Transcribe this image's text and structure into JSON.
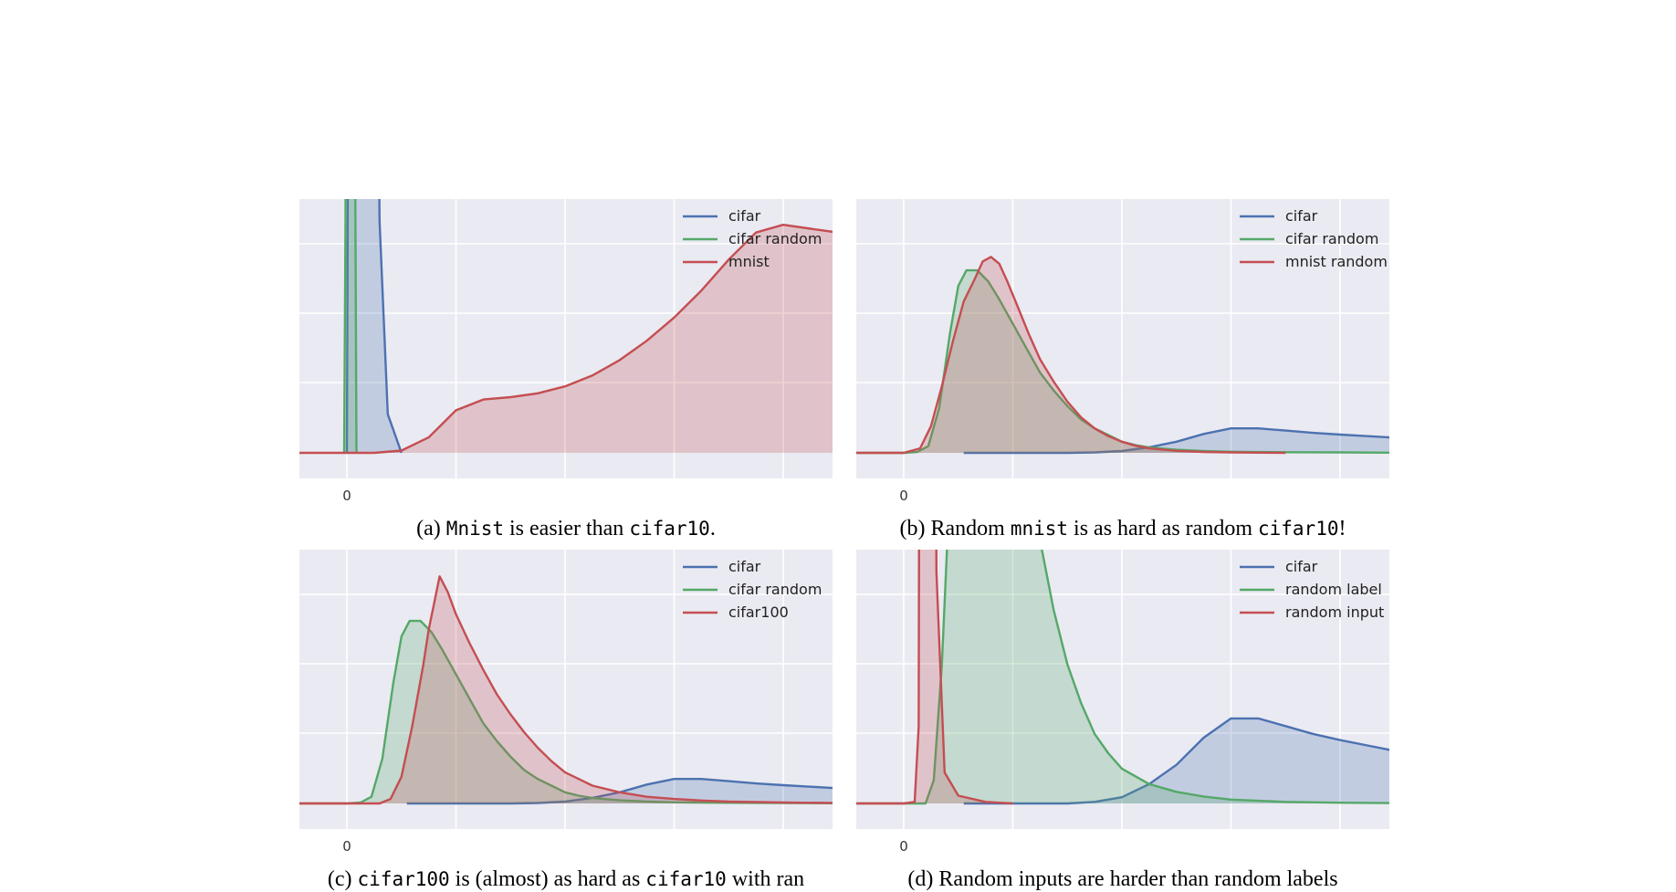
{
  "chart_data": [
    {
      "type": "area",
      "caption": {
        "pre": "(a) ",
        "code1": "Mnist",
        "mid": " is easier than ",
        "code2": "cifar10",
        "post": "."
      },
      "x_ticks": [
        "0"
      ],
      "grid": true,
      "legend_position": "top-right",
      "series": [
        {
          "name": "cifar",
          "color": "#4c72b0",
          "x": [
            -2,
            -0.2,
            0,
            0.05,
            0.1,
            0.2,
            0.3,
            0.4,
            0.5,
            0.6,
            0.7,
            0.85,
            1.0,
            1.2,
            1.5,
            2
          ],
          "y": [
            null,
            null,
            0,
            0.5,
            4,
            12,
            14,
            14,
            14,
            12,
            7,
            3,
            1,
            0.3,
            0.05,
            0
          ]
        },
        {
          "name": "cifar random",
          "color": "#55a868",
          "x": [
            -2,
            -0.2,
            -0.1,
            -0.05,
            0,
            0.05,
            0.1,
            0.15,
            0.2,
            0.25,
            0.3,
            0.35
          ],
          "y": [
            null,
            null,
            0,
            0.3,
            5,
            14,
            14,
            14,
            7,
            2,
            0.4,
            0
          ]
        },
        {
          "name": "mnist",
          "color": "#c44e52",
          "x": [
            -2,
            0,
            1,
            2,
            3,
            4,
            5,
            6,
            7,
            8,
            9,
            10,
            11,
            12,
            13,
            14,
            15,
            16,
            17,
            18,
            19,
            20,
            21,
            22
          ],
          "y": [
            0,
            0,
            0,
            0.003,
            0.02,
            0.055,
            0.069,
            0.072,
            0.077,
            0.086,
            0.1,
            0.12,
            0.145,
            0.175,
            0.21,
            0.25,
            0.285,
            0.295,
            0.29,
            0.285,
            0.278,
            0.27,
            0.258,
            0.24
          ]
        }
      ]
    },
    {
      "type": "area",
      "caption": {
        "pre": "(b) Random ",
        "code1": "mnist",
        "mid": " is as hard as random ",
        "code2": "cifar10",
        "post": "!"
      },
      "x_ticks": [
        "0"
      ],
      "grid": true,
      "legend_position": "top-right",
      "series": [
        {
          "name": "cifar",
          "color": "#4c72b0",
          "x": [
            2.2,
            4,
            6,
            7,
            8,
            9,
            10,
            11,
            12,
            13,
            14,
            15,
            16,
            17,
            18,
            19,
            20,
            21,
            22
          ],
          "y": [
            0,
            0,
            0,
            0.002,
            0.008,
            0.025,
            0.05,
            0.085,
            0.11,
            0.11,
            0.1,
            0.09,
            0.082,
            0.075,
            0.068,
            0.063,
            0.058,
            0.054,
            0.05
          ]
        },
        {
          "name": "cifar random",
          "color": "#55a868",
          "x": [
            -2,
            0,
            0.5,
            0.9,
            1.3,
            1.7,
            2.0,
            2.3,
            2.7,
            3.1,
            3.5,
            4,
            4.5,
            5,
            5.5,
            6,
            6.5,
            7,
            7.5,
            8,
            8.5,
            9,
            10,
            11,
            12,
            14,
            16,
            18,
            20,
            22
          ],
          "y": [
            0,
            0,
            0.004,
            0.03,
            0.2,
            0.54,
            0.75,
            0.82,
            0.82,
            0.77,
            0.69,
            0.58,
            0.47,
            0.36,
            0.28,
            0.21,
            0.15,
            0.11,
            0.08,
            0.05,
            0.035,
            0.024,
            0.014,
            0.008,
            0.005,
            0.003,
            0.002,
            0.001,
            0.0005,
            0
          ]
        },
        {
          "name": "mnist random",
          "color": "#c44e52",
          "x": [
            -2,
            0,
            0.6,
            1.0,
            1.4,
            1.8,
            2.2,
            2.6,
            2.9,
            3.2,
            3.5,
            3.8,
            4.2,
            4.6,
            5,
            5.5,
            6,
            6.5,
            7,
            7.5,
            8,
            8.5,
            9,
            10,
            11,
            12,
            13,
            14
          ],
          "y": [
            0,
            0,
            0.02,
            0.12,
            0.3,
            0.5,
            0.68,
            0.78,
            0.86,
            0.88,
            0.85,
            0.77,
            0.65,
            0.53,
            0.42,
            0.32,
            0.23,
            0.16,
            0.11,
            0.075,
            0.05,
            0.032,
            0.02,
            0.009,
            0.004,
            0.002,
            0.001,
            0
          ]
        }
      ]
    },
    {
      "type": "area",
      "caption": {
        "pre": "(c) ",
        "code1": "cifar100",
        "mid": " is (almost) as hard as ",
        "code2": "cifar10",
        "post": " with ran"
      },
      "x_ticks": [
        "0"
      ],
      "grid": true,
      "legend_position": "top-right",
      "series": [
        {
          "name": "cifar",
          "color": "#4c72b0",
          "x": [
            2.2,
            4,
            6,
            7,
            8,
            9,
            10,
            11,
            12,
            13,
            14,
            15,
            16,
            17,
            18,
            19,
            20,
            21,
            22
          ],
          "y": [
            0,
            0,
            0,
            0.002,
            0.008,
            0.025,
            0.05,
            0.085,
            0.11,
            0.11,
            0.1,
            0.09,
            0.082,
            0.075,
            0.068,
            0.063,
            0.058,
            0.054,
            0.05
          ]
        },
        {
          "name": "cifar random",
          "color": "#55a868",
          "x": [
            -2,
            0,
            0.5,
            0.9,
            1.3,
            1.7,
            2.0,
            2.3,
            2.7,
            3.1,
            3.5,
            4,
            4.5,
            5,
            5.5,
            6,
            6.5,
            7,
            7.5,
            8,
            8.5,
            9,
            10,
            11,
            12,
            14,
            16,
            18,
            20,
            22
          ],
          "y": [
            0,
            0,
            0.004,
            0.03,
            0.2,
            0.54,
            0.75,
            0.82,
            0.82,
            0.77,
            0.69,
            0.58,
            0.47,
            0.36,
            0.28,
            0.21,
            0.15,
            0.11,
            0.08,
            0.05,
            0.035,
            0.024,
            0.014,
            0.008,
            0.005,
            0.003,
            0.002,
            0.001,
            0.0005,
            0
          ]
        },
        {
          "name": "cifar100",
          "color": "#c44e52",
          "x": [
            -2,
            1.2,
            1.6,
            2.0,
            2.4,
            2.8,
            3.0,
            3.2,
            3.4,
            3.7,
            4.0,
            4.5,
            5,
            5.5,
            6,
            6.5,
            7,
            7.5,
            8,
            9,
            10,
            11,
            12,
            13,
            14,
            16,
            18,
            20,
            22
          ],
          "y": [
            0,
            0,
            0.02,
            0.12,
            0.35,
            0.62,
            0.78,
            0.9,
            1.02,
            0.95,
            0.85,
            0.72,
            0.6,
            0.49,
            0.4,
            0.32,
            0.25,
            0.19,
            0.14,
            0.08,
            0.05,
            0.03,
            0.02,
            0.013,
            0.008,
            0.004,
            0.002,
            0.001,
            0
          ]
        }
      ]
    },
    {
      "type": "area",
      "caption": {
        "pre": "(d) Random inputs are harder than random labels",
        "code1": "",
        "mid": "",
        "code2": "",
        "post": ""
      },
      "x_ticks": [
        "0"
      ],
      "grid": true,
      "legend_position": "top-right",
      "series": [
        {
          "name": "cifar",
          "color": "#4c72b0",
          "x": [
            2.2,
            4,
            6,
            7,
            8,
            9,
            10,
            11,
            12,
            13,
            14,
            15,
            16,
            17,
            18,
            19,
            20,
            21,
            22
          ],
          "y": [
            0,
            0,
            0,
            0.002,
            0.008,
            0.025,
            0.05,
            0.085,
            0.11,
            0.11,
            0.1,
            0.09,
            0.082,
            0.075,
            0.068,
            0.063,
            0.058,
            0.054,
            0.05
          ]
        },
        {
          "name": "random label",
          "color": "#55a868",
          "x": [
            -2,
            0,
            0.8,
            1.1,
            1.4,
            1.7,
            2.0,
            2.3,
            2.6,
            2.9,
            3.2,
            3.6,
            4.0,
            4.5,
            5,
            5.5,
            6,
            6.5,
            7,
            7.5,
            8,
            9,
            10,
            11,
            12,
            14,
            16,
            18,
            20,
            22
          ],
          "y": [
            0,
            0,
            0,
            0.03,
            0.18,
            0.42,
            0.62,
            0.74,
            0.82,
            0.79,
            0.74,
            0.66,
            0.55,
            0.44,
            0.34,
            0.25,
            0.18,
            0.13,
            0.09,
            0.065,
            0.045,
            0.025,
            0.015,
            0.009,
            0.005,
            0.002,
            0.001,
            0.0005,
            0.0002,
            0
          ]
        },
        {
          "name": "random input",
          "color": "#c44e52",
          "x": [
            -2,
            0,
            0.4,
            0.55,
            0.65,
            0.75,
            0.85,
            0.95,
            1.05,
            1.2,
            1.5,
            2.0,
            3.0,
            3.5,
            4.0
          ],
          "y": [
            0,
            0,
            0.002,
            0.1,
            2,
            6,
            6,
            6,
            2,
            0.3,
            0.04,
            0.01,
            0.002,
            0.001,
            0
          ]
        }
      ]
    }
  ]
}
